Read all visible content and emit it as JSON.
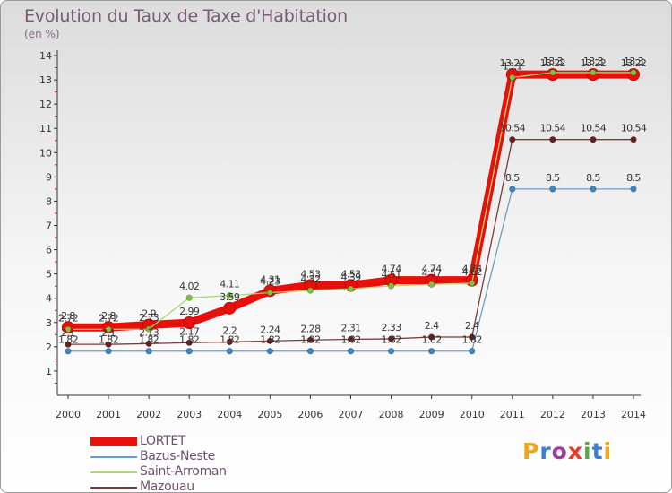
{
  "title": "Evolution du Taux de Taxe d'Habitation",
  "subtitle": "(en %)",
  "logo": "Proxiti",
  "colors": {
    "logo": [
      "#f5a21c",
      "#3d7fd0",
      "#9c3d9b",
      "#e8392b",
      "#56a845",
      "#3d7fd0",
      "#f5a21c"
    ]
  },
  "chart_data": {
    "type": "line",
    "x": [
      "2000",
      "2001",
      "2002",
      "2003",
      "2004",
      "2005",
      "2006",
      "2007",
      "2008",
      "2009",
      "2010",
      "2011",
      "2012",
      "2013",
      "2014"
    ],
    "ylim": [
      0,
      14
    ],
    "yticks": [
      "1",
      "2",
      "3",
      "4",
      "5",
      "6",
      "7",
      "8",
      "9",
      "10",
      "11",
      "12",
      "13",
      "14"
    ],
    "grid": false,
    "legend_position": "bottom-left",
    "series": [
      {
        "name": "LORTET",
        "color": "#e8100a",
        "marker": "#e8100a",
        "values": [
          2.8,
          2.8,
          2.9,
          2.99,
          3.59,
          4.31,
          4.53,
          4.53,
          4.74,
          4.74,
          4.74,
          13.22,
          13.22,
          13.22,
          13.22
        ],
        "labels": [
          "2.8",
          "2.8",
          "2.9",
          "2.99",
          "3.59",
          "4.31",
          "4.53",
          "4.53",
          "4.74",
          "4.74",
          "4.74",
          "13.22",
          "13.22",
          "13.22",
          "13.22"
        ]
      },
      {
        "name": "Bazus-Neste",
        "color": "#6c9dc9",
        "marker": "#3e86c2",
        "values": [
          1.82,
          1.82,
          1.82,
          1.82,
          1.82,
          1.82,
          1.82,
          1.82,
          1.82,
          1.82,
          1.82,
          8.5,
          8.5,
          8.5,
          8.5
        ],
        "labels": [
          "1.82",
          "1.82",
          "1.82",
          "1.82",
          "1.82",
          "1.82",
          "1.82",
          "1.82",
          "1.82",
          "1.82",
          "1.82",
          "8.5",
          "8.5",
          "8.5",
          "8.5"
        ]
      },
      {
        "name": "Saint-Arroman",
        "color": "#a8d878",
        "marker": "#7cc43e",
        "values": [
          2.72,
          2.72,
          2.73,
          4.02,
          4.11,
          4.23,
          4.32,
          4.39,
          4.51,
          4.57,
          4.62,
          13.1,
          13.3,
          13.3,
          13.3
        ],
        "labels": [
          "2.72",
          "2.72",
          "2.73",
          "4.02",
          "4.11",
          "4.23",
          "4.32",
          "4.39",
          "4.51",
          "4.57",
          "4.62",
          "13.1",
          "13.3",
          "13.3",
          "13.3"
        ]
      },
      {
        "name": "Mazouau",
        "color": "#7a3a3a",
        "marker": "#6b1e20",
        "values": [
          2.1,
          2.1,
          2.13,
          2.17,
          2.2,
          2.24,
          2.28,
          2.31,
          2.33,
          2.4,
          2.4,
          10.54,
          10.54,
          10.54,
          10.54
        ],
        "labels": [
          "2.1",
          "2.1",
          "2.13",
          "2.17",
          "2.2",
          "2.24",
          "2.28",
          "2.31",
          "2.33",
          "2.4",
          "2.4",
          "10.54",
          "10.54",
          "10.54",
          "10.54"
        ]
      }
    ]
  }
}
